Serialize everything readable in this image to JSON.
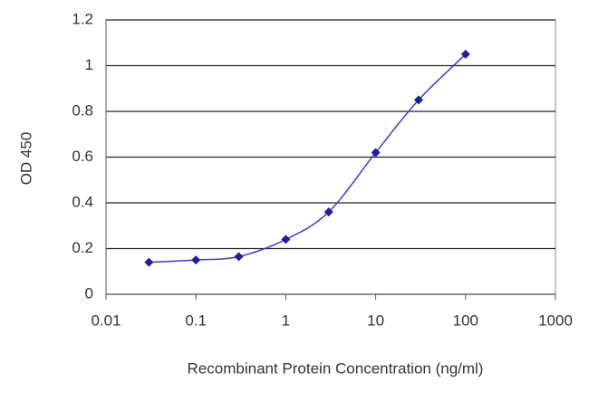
{
  "chart_data": {
    "type": "line",
    "x_label": "Recombinant Protein Concentration (ng/ml)",
    "y_label": "OD 450",
    "x": [
      0.03,
      0.1,
      0.3,
      1,
      3,
      10,
      30,
      100
    ],
    "series": [
      {
        "color": "#1f1f99",
        "values": [
          0.14,
          0.15,
          0.165,
          0.24,
          0.36,
          0.62,
          0.85,
          1.05
        ]
      }
    ],
    "xlim": [
      0.01,
      1000
    ],
    "xticks": [
      0.01,
      0.1,
      1,
      10,
      100,
      1000
    ],
    "xscale": "log",
    "ylim": [
      0,
      1.2
    ],
    "yticks": [
      0,
      0.2,
      0.4,
      0.6,
      0.8,
      1,
      1.2
    ],
    "grid": true
  }
}
